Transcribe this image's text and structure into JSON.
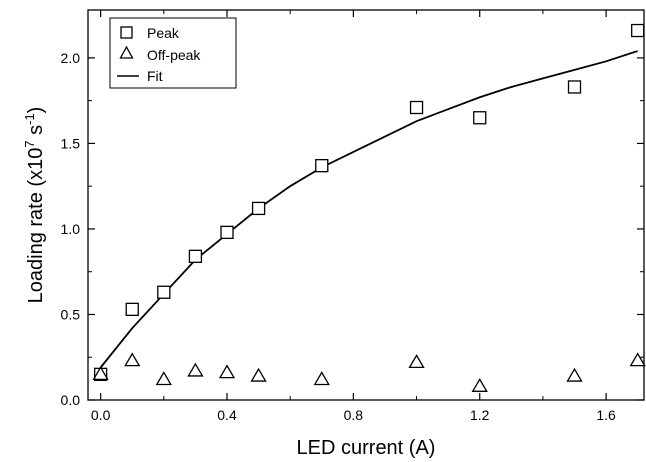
{
  "chart_data": {
    "type": "scatter",
    "xlabel": "LED current (A)",
    "ylabel": {
      "prefix": "Loading rate (x10",
      "exp1": "7",
      "mid": " s",
      "exp2": "-1",
      "suffix": ")"
    },
    "xlim": [
      -0.04,
      1.72
    ],
    "ylim": [
      0.0,
      2.28
    ],
    "xticks": [
      "0.0",
      "0.4",
      "0.8",
      "1.2",
      "1.6"
    ],
    "yticks": [
      "0.0",
      "0.5",
      "1.0",
      "1.5",
      "2.0"
    ],
    "legend_position": "top-left",
    "series": [
      {
        "name": "Peak",
        "marker": "square",
        "points": [
          {
            "x": 0.0,
            "y": 0.15
          },
          {
            "x": 0.1,
            "y": 0.53
          },
          {
            "x": 0.2,
            "y": 0.63
          },
          {
            "x": 0.3,
            "y": 0.84
          },
          {
            "x": 0.4,
            "y": 0.98
          },
          {
            "x": 0.5,
            "y": 1.12
          },
          {
            "x": 0.7,
            "y": 1.37
          },
          {
            "x": 1.0,
            "y": 1.71
          },
          {
            "x": 1.2,
            "y": 1.65
          },
          {
            "x": 1.5,
            "y": 1.83
          },
          {
            "x": 1.7,
            "y": 2.16
          }
        ]
      },
      {
        "name": "Off-peak",
        "marker": "triangle",
        "points": [
          {
            "x": 0.0,
            "y": 0.15
          },
          {
            "x": 0.1,
            "y": 0.23
          },
          {
            "x": 0.2,
            "y": 0.12
          },
          {
            "x": 0.3,
            "y": 0.17
          },
          {
            "x": 0.4,
            "y": 0.16
          },
          {
            "x": 0.5,
            "y": 0.14
          },
          {
            "x": 0.7,
            "y": 0.12
          },
          {
            "x": 1.0,
            "y": 0.22
          },
          {
            "x": 1.2,
            "y": 0.08
          },
          {
            "x": 1.5,
            "y": 0.14
          },
          {
            "x": 1.7,
            "y": 0.23
          }
        ]
      },
      {
        "name": "Fit",
        "marker": "line",
        "points": [
          {
            "x": 0.0,
            "y": 0.19
          },
          {
            "x": 0.1,
            "y": 0.42
          },
          {
            "x": 0.2,
            "y": 0.62
          },
          {
            "x": 0.3,
            "y": 0.82
          },
          {
            "x": 0.4,
            "y": 0.97
          },
          {
            "x": 0.5,
            "y": 1.12
          },
          {
            "x": 0.6,
            "y": 1.25
          },
          {
            "x": 0.7,
            "y": 1.36
          },
          {
            "x": 0.8,
            "y": 1.45
          },
          {
            "x": 0.9,
            "y": 1.54
          },
          {
            "x": 1.0,
            "y": 1.63
          },
          {
            "x": 1.1,
            "y": 1.7
          },
          {
            "x": 1.2,
            "y": 1.77
          },
          {
            "x": 1.3,
            "y": 1.83
          },
          {
            "x": 1.4,
            "y": 1.88
          },
          {
            "x": 1.5,
            "y": 1.93
          },
          {
            "x": 1.6,
            "y": 1.98
          },
          {
            "x": 1.7,
            "y": 2.04
          }
        ]
      }
    ]
  }
}
